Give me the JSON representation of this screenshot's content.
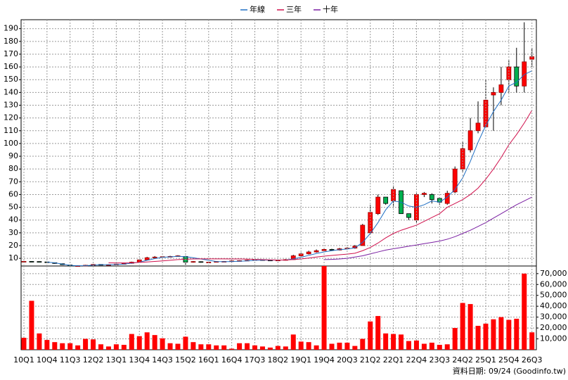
{
  "chart_data": [
    {
      "type": "candlestick",
      "categories": [
        "10Q1",
        null,
        null,
        "10Q4",
        null,
        null,
        "11Q3",
        null,
        null,
        "12Q2",
        null,
        null,
        "13Q1",
        null,
        null,
        "13Q4",
        null,
        null,
        "14Q3",
        null,
        null,
        "15Q2",
        null,
        null,
        "16Q1",
        null,
        null,
        "16Q4",
        null,
        null,
        "17Q3",
        null,
        null,
        "18Q2",
        null,
        null,
        "19Q1",
        null,
        null,
        "19Q4",
        null,
        null,
        "20Q3",
        null,
        null,
        "21Q2",
        null,
        null,
        "22Q1",
        null,
        null,
        "22Q4",
        null,
        null,
        "23Q3",
        null,
        null,
        "24Q2",
        null,
        null,
        "25Q1",
        null,
        null,
        "25Q4",
        null,
        null,
        "26Q3"
      ],
      "open": [
        7.5,
        7.6,
        7.5,
        7.2,
        6.6,
        5.8,
        4.8,
        4.0,
        4.2,
        4.4,
        5.2,
        5.0,
        5.0,
        5.4,
        6.1,
        7.0,
        8.8,
        10.5,
        11.0,
        11.3,
        11.6,
        11.5,
        7.0,
        7.4,
        7.0,
        7.0,
        7.5,
        7.6,
        8.0,
        8.2,
        8.6,
        8.9,
        8.6,
        8.5,
        8.6,
        9.0,
        12.0,
        13.5,
        15.0,
        16.0,
        17.0,
        16.5,
        17.5,
        18.0,
        20,
        30,
        45,
        58,
        55,
        63,
        45,
        40,
        60,
        60,
        57,
        53,
        62,
        80,
        95,
        110,
        113,
        138,
        140,
        150,
        160,
        145,
        166
      ],
      "high": [
        7.9,
        7.8,
        7.6,
        7.3,
        6.8,
        6.0,
        5.0,
        4.5,
        4.9,
        5.6,
        5.4,
        5.3,
        5.8,
        6.6,
        7.4,
        9.3,
        11.2,
        11.8,
        11.8,
        12.0,
        12.5,
        12.0,
        7.9,
        7.7,
        7.4,
        7.8,
        7.9,
        8.3,
        8.5,
        8.9,
        9.3,
        9.2,
        8.9,
        8.9,
        9.4,
        12.8,
        14.5,
        16.0,
        17.0,
        18.0,
        17.5,
        18.2,
        18.8,
        20.5,
        37,
        52,
        60,
        58,
        67,
        63,
        45,
        61,
        62,
        61,
        58,
        63,
        82,
        101,
        120,
        133,
        150,
        144,
        160,
        165,
        175,
        195,
        175
      ],
      "low": [
        7.2,
        7.2,
        7.0,
        6.6,
        5.8,
        4.8,
        3.8,
        3.8,
        4.0,
        4.2,
        4.7,
        4.7,
        4.8,
        5.2,
        5.8,
        6.8,
        8.5,
        10.2,
        10.7,
        11.0,
        11.4,
        5.0,
        6.6,
        6.6,
        6.7,
        6.8,
        7.2,
        7.3,
        7.7,
        7.9,
        8.3,
        8.4,
        8.2,
        8.2,
        8.3,
        8.8,
        11.5,
        13.0,
        14.5,
        15.5,
        16.0,
        16.2,
        17.0,
        17.5,
        20,
        29,
        44,
        52,
        50,
        45,
        40,
        38,
        58,
        53,
        52,
        52,
        61,
        78,
        93,
        108,
        112,
        110,
        130,
        140,
        140,
        140,
        160
      ],
      "close": [
        7.6,
        7.5,
        7.3,
        6.8,
        6.0,
        5.0,
        4.0,
        4.2,
        4.6,
        5.2,
        5.0,
        5.0,
        5.5,
        6.2,
        7.0,
        8.8,
        10.5,
        11.0,
        11.3,
        11.5,
        12.0,
        7.0,
        7.5,
        7.0,
        7.0,
        7.5,
        7.6,
        8.0,
        8.2,
        8.5,
        9.0,
        8.6,
        8.5,
        8.6,
        9.0,
        12.0,
        13.5,
        15.0,
        16.0,
        17.0,
        16.5,
        17.5,
        18.0,
        19.5,
        36,
        46,
        58,
        53,
        64,
        45,
        42,
        60,
        61,
        56,
        54,
        61,
        80,
        96,
        110,
        116,
        134,
        140,
        146,
        160,
        145,
        164,
        168
      ],
      "up_color": "#ff0000",
      "down_color": "#00b050",
      "series": [
        {
          "name": "年線",
          "color": "#1f6fc4",
          "values": [
            null,
            null,
            null,
            7,
            6.5,
            5.5,
            4.5,
            4.2,
            4.3,
            4.6,
            5,
            5,
            5.2,
            5.5,
            6.2,
            7,
            8.5,
            9.8,
            10.8,
            11.2,
            11.6,
            11.3,
            10.5,
            9.5,
            8.5,
            7.5,
            7.4,
            7.5,
            7.7,
            8,
            8.4,
            8.6,
            8.6,
            8.6,
            8.7,
            9.6,
            10.8,
            12.3,
            13.8,
            15,
            16,
            16.8,
            17.3,
            18.2,
            22.5,
            29.5,
            38,
            48,
            55,
            54,
            51,
            50,
            52,
            55,
            54,
            58,
            64,
            73,
            86,
            101,
            114,
            125,
            134,
            145,
            148,
            154,
            157
          ]
        },
        {
          "name": "三年",
          "color": "#d0104c",
          "values": [
            null,
            null,
            null,
            null,
            null,
            null,
            null,
            null,
            null,
            null,
            null,
            6.5,
            6.4,
            6.4,
            6.5,
            6.8,
            7.2,
            7.6,
            8,
            8.5,
            9,
            9.3,
            9.5,
            9.6,
            9.6,
            9.6,
            9.6,
            9.5,
            9.5,
            9.4,
            9.2,
            9,
            8.8,
            8.7,
            8.7,
            9,
            9.5,
            10.2,
            11,
            11.7,
            12.3,
            12.8,
            13.3,
            14,
            16,
            18.5,
            22,
            26,
            29.5,
            32,
            34,
            36,
            39,
            42,
            45,
            50,
            53,
            56,
            60,
            65,
            72,
            80,
            89,
            99,
            107,
            116,
            126
          ]
        },
        {
          "name": "十年",
          "color": "#7a1fa2",
          "values": [
            null,
            null,
            null,
            null,
            null,
            null,
            null,
            null,
            null,
            null,
            null,
            null,
            null,
            null,
            null,
            null,
            null,
            null,
            null,
            null,
            null,
            null,
            null,
            null,
            null,
            null,
            null,
            null,
            null,
            null,
            null,
            null,
            null,
            null,
            null,
            null,
            null,
            null,
            null,
            9,
            9.2,
            9.5,
            10,
            11,
            12,
            13.5,
            15,
            16.5,
            17.5,
            18.5,
            19.5,
            20.5,
            21.5,
            22.5,
            23.5,
            25,
            27,
            29.5,
            32,
            35,
            38,
            41.5,
            45,
            48.5,
            52,
            55,
            58
          ]
        }
      ],
      "ylim": [
        4,
        197
      ],
      "yticks": [
        10,
        20,
        30,
        40,
        50,
        60,
        70,
        80,
        90,
        100,
        110,
        120,
        130,
        140,
        150,
        160,
        170,
        180,
        190
      ],
      "grid": true
    },
    {
      "type": "bar",
      "color": "#ff0000",
      "values": [
        11000,
        45000,
        15000,
        9000,
        7000,
        6000,
        6000,
        4000,
        10000,
        9500,
        5000,
        3000,
        5000,
        4500,
        14500,
        12500,
        16000,
        13500,
        10500,
        6000,
        5500,
        12000,
        7000,
        5000,
        5000,
        4000,
        4000,
        1000,
        6000,
        6000,
        4000,
        3000,
        2000,
        3500,
        3000,
        14000,
        7500,
        7000,
        4000,
        77000,
        5500,
        6500,
        6500,
        3500,
        10000,
        26000,
        31000,
        15000,
        14500,
        14000,
        8000,
        8500,
        5500,
        6500,
        4500,
        5000,
        20000,
        43000,
        42000,
        22000,
        24000,
        28000,
        30000,
        27500,
        28500,
        70000,
        16000
      ],
      "ylim": [
        0,
        77000
      ],
      "yticks": [
        {
          "value": 10000,
          "label": "10,000"
        },
        {
          "value": 20000,
          "label": "20,000"
        },
        {
          "value": 30000,
          "label": "30,000"
        },
        {
          "value": 40000,
          "label": "40,000"
        },
        {
          "value": 50000,
          "label": "50,000"
        },
        {
          "value": 60000,
          "label": "60,000"
        },
        {
          "value": 70000,
          "label": "70,000"
        }
      ],
      "grid": true
    }
  ],
  "footer": "資料日期: 09/24 (Goodinfo.tw)"
}
